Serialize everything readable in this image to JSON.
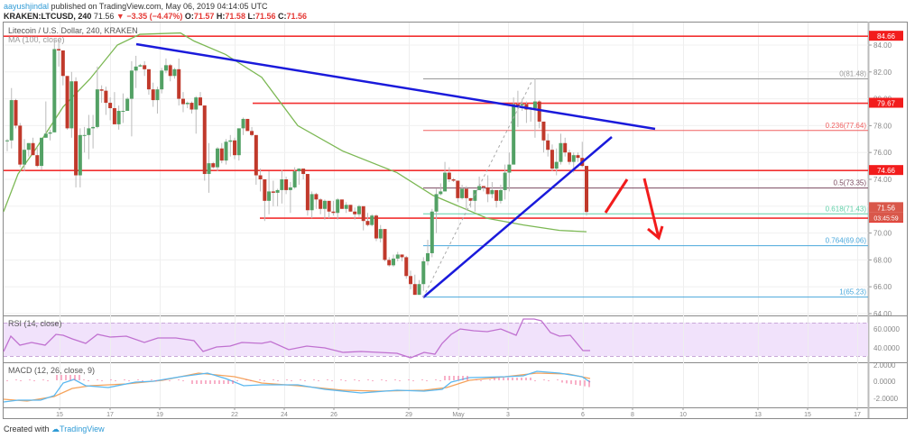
{
  "header": {
    "author": "aayushjindal",
    "published_text": " published on TradingView.com, May 06, 2019 04:14:05 UTC",
    "symbol": "KRAKEN:LTCUSD, 240",
    "last": "71.56",
    "change": "▼ −3.35 (−4.47%)",
    "o_label": "O:",
    "o": "71.57",
    "h_label": "H:",
    "h": "71.58",
    "l_label": "L:",
    "l": "71.56",
    "c_label": "C:",
    "c": "71.56"
  },
  "chart_title": "Litecoin / U.S. Dollar, 240, KRAKEN",
  "ma_label": "MA (100, close)",
  "rsi_label": "RSI (14, close)",
  "macd_label": "MACD (12, 26, close, 9)",
  "footer": {
    "created": "Created with",
    "brand": "TradingView"
  },
  "colors": {
    "up": "#53a165",
    "down": "#c0392b",
    "ma": "#7cb854",
    "trend": "#1a1adb",
    "hline": "#f23030",
    "rsi": "#c071d0",
    "macd": "#5ab8f0",
    "signal": "#f5a35c",
    "hist": "#f06292"
  },
  "chart_data": {
    "type": "candlestick",
    "title": "Litecoin / U.S. Dollar, 240, KRAKEN",
    "price_axis": {
      "ticks": [
        "84.00",
        "82.00",
        "80.00",
        "78.00",
        "76.00",
        "74.00",
        "72.00",
        "70.00",
        "68.00",
        "66.00",
        "64.00"
      ],
      "range": [
        64.0,
        85.5
      ]
    },
    "time_axis": {
      "ticks": [
        "15",
        "17",
        "19",
        "22",
        "24",
        "26",
        "29",
        "May",
        "3",
        "6",
        "8",
        "10",
        "13",
        "15",
        "17"
      ]
    },
    "horizontal_levels": [
      {
        "price": 84.66,
        "label": "84.66"
      },
      {
        "price": 79.67,
        "label": "79.67"
      },
      {
        "price": 74.66,
        "label": "74.66"
      },
      {
        "price": 71.11,
        "label": "71.11"
      }
    ],
    "price_tags": [
      {
        "label": "71.56",
        "countdown": "03:45:59"
      }
    ],
    "fibonacci": [
      {
        "level": "0",
        "price": 81.48,
        "text": "0(81.48)",
        "color": "#999999"
      },
      {
        "level": "0.236",
        "price": 77.64,
        "text": "0.236(77.64)",
        "color": "#f06060"
      },
      {
        "level": "0.5",
        "price": 73.35,
        "text": "0.5(73.35)",
        "color": "#7a4a60"
      },
      {
        "level": "0.618",
        "price": 71.43,
        "text": "0.618(71.43)",
        "color": "#5fd0a8"
      },
      {
        "level": "0.764",
        "price": 69.06,
        "text": "0.764(69.06)",
        "color": "#4aa8dc"
      },
      {
        "level": "1",
        "price": 65.23,
        "text": "1(65.23)",
        "color": "#4aa8dc"
      }
    ],
    "candles": [
      [
        76.9,
        77.0,
        76.1,
        76.9
      ],
      [
        76.9,
        80.8,
        76.3,
        79.9
      ],
      [
        79.9,
        80.0,
        77.8,
        78.0
      ],
      [
        78.0,
        78.2,
        74.9,
        75.1
      ],
      [
        75.1,
        77.0,
        74.6,
        76.2
      ],
      [
        76.2,
        76.7,
        75.7,
        76.7
      ],
      [
        76.7,
        77.1,
        75.9,
        75.8
      ],
      [
        75.8,
        76.4,
        74.9,
        75.0
      ],
      [
        75.0,
        77.0,
        74.7,
        77.1
      ],
      [
        77.1,
        79.8,
        77.1,
        77.4
      ],
      [
        77.4,
        77.7,
        76.9,
        77.5
      ],
      [
        77.5,
        84.4,
        77.5,
        83.7
      ],
      [
        83.7,
        84.3,
        82.4,
        83.6
      ],
      [
        83.6,
        83.5,
        81.0,
        81.7
      ],
      [
        81.7,
        81.4,
        77.7,
        77.8
      ],
      [
        77.8,
        82.0,
        77.1,
        81.3
      ],
      [
        81.3,
        81.6,
        73.4,
        74.3
      ],
      [
        74.3,
        77.8,
        73.4,
        77.3
      ],
      [
        77.3,
        77.9,
        76.0,
        77.3
      ],
      [
        77.3,
        78.8,
        75.5,
        77.8
      ],
      [
        77.8,
        78.8,
        76.3,
        77.9
      ],
      [
        77.9,
        82.4,
        77.8,
        80.7
      ],
      [
        80.7,
        81.0,
        79.7,
        80.6
      ],
      [
        80.6,
        80.9,
        78.8,
        79.7
      ],
      [
        79.7,
        80.1,
        78.4,
        79.3
      ],
      [
        79.3,
        80.5,
        78.6,
        78.1
      ],
      [
        78.1,
        79.5,
        77.7,
        79.1
      ],
      [
        79.1,
        80.4,
        78.2,
        79.1
      ],
      [
        79.1,
        80.1,
        79.3,
        80.0
      ],
      [
        80.0,
        82.8,
        77.2,
        82.1
      ],
      [
        82.1,
        83.2,
        80.8,
        82.4
      ],
      [
        82.4,
        82.6,
        82.4,
        82.5
      ],
      [
        82.5,
        82.8,
        81.7,
        82.2
      ],
      [
        82.2,
        82.2,
        80.3,
        80.7
      ],
      [
        80.7,
        81.2,
        79.4,
        79.9
      ],
      [
        79.9,
        80.9,
        78.9,
        80.7
      ],
      [
        80.7,
        82.3,
        80.4,
        82.1
      ],
      [
        82.1,
        83.0,
        81.9,
        82.5
      ],
      [
        82.5,
        82.6,
        81.3,
        81.7
      ],
      [
        81.7,
        82.3,
        81.5,
        82.2
      ],
      [
        82.2,
        83.0,
        79.5,
        80.0
      ],
      [
        80.0,
        80.5,
        79.0,
        79.6
      ],
      [
        79.6,
        79.8,
        79.3,
        79.7
      ],
      [
        79.7,
        79.8,
        78.9,
        79.2
      ],
      [
        79.2,
        80.2,
        77.4,
        80.1
      ],
      [
        80.1,
        80.5,
        79.6,
        79.5
      ],
      [
        79.5,
        79.0,
        73.9,
        74.4
      ],
      [
        74.4,
        76.7,
        73.0,
        75.2
      ],
      [
        75.2,
        75.3,
        74.8,
        74.9
      ],
      [
        74.9,
        76.4,
        74.6,
        76.3
      ],
      [
        76.3,
        76.7,
        75.2,
        75.4
      ],
      [
        75.4,
        77.0,
        75.1,
        76.8
      ],
      [
        76.8,
        77.3,
        75.7,
        76.9
      ],
      [
        76.9,
        77.1,
        75.5,
        75.8
      ],
      [
        75.8,
        77.7,
        75.4,
        77.8
      ],
      [
        77.8,
        78.6,
        77.3,
        78.5
      ],
      [
        78.5,
        78.5,
        77.7,
        77.6
      ],
      [
        77.6,
        77.9,
        77.2,
        77.3
      ],
      [
        77.3,
        76.8,
        73.6,
        74.3
      ],
      [
        74.3,
        74.8,
        73.1,
        74.0
      ],
      [
        74.0,
        72.9,
        70.9,
        72.4
      ],
      [
        72.4,
        74.6,
        71.4,
        73.1
      ],
      [
        73.1,
        73.9,
        72.0,
        73.0
      ],
      [
        73.0,
        73.3,
        72.0,
        73.2
      ],
      [
        73.2,
        74.7,
        72.2,
        74.0
      ],
      [
        74.0,
        74.2,
        72.9,
        73.2
      ],
      [
        73.2,
        73.8,
        71.5,
        73.4
      ],
      [
        73.4,
        74.9,
        73.3,
        74.6
      ],
      [
        74.6,
        74.8,
        73.6,
        74.8
      ],
      [
        74.8,
        74.8,
        74.0,
        74.4
      ],
      [
        74.4,
        74.2,
        71.3,
        71.7
      ],
      [
        71.7,
        73.1,
        71.1,
        72.9
      ],
      [
        72.9,
        73.0,
        71.8,
        72.5
      ],
      [
        72.5,
        72.6,
        71.4,
        71.8
      ],
      [
        71.8,
        72.5,
        71.0,
        72.4
      ],
      [
        72.4,
        72.3,
        71.1,
        71.6
      ],
      [
        71.6,
        72.4,
        71.3,
        71.5
      ],
      [
        71.5,
        72.6,
        71.0,
        72.5
      ],
      [
        72.5,
        72.3,
        71.8,
        71.8
      ],
      [
        71.8,
        72.3,
        71.5,
        72.1
      ],
      [
        72.1,
        72.1,
        71.6,
        71.6
      ],
      [
        71.6,
        71.9,
        71.0,
        71.4
      ],
      [
        71.4,
        72.1,
        71.2,
        72.0
      ],
      [
        72.0,
        71.5,
        70.2,
        70.9
      ],
      [
        70.9,
        71.5,
        70.5,
        70.6
      ],
      [
        70.6,
        71.4,
        70.5,
        71.3
      ],
      [
        71.3,
        71.4,
        69.4,
        69.6
      ],
      [
        69.6,
        70.6,
        69.3,
        70.3
      ],
      [
        70.3,
        70.3,
        67.9,
        68.0
      ],
      [
        68.0,
        68.2,
        67.5,
        67.6
      ],
      [
        67.6,
        68.4,
        67.5,
        68.1
      ],
      [
        68.1,
        68.6,
        67.9,
        68.4
      ],
      [
        68.4,
        68.4,
        67.9,
        68.2
      ],
      [
        68.2,
        68.3,
        66.6,
        66.8
      ],
      [
        66.8,
        67.2,
        65.8,
        66.2
      ],
      [
        66.2,
        66.9,
        65.4,
        65.4
      ],
      [
        65.4,
        66.5,
        65.4,
        66.2
      ],
      [
        66.2,
        68.2,
        65.7,
        67.9
      ],
      [
        67.9,
        69.5,
        67.6,
        68.5
      ],
      [
        68.5,
        71.8,
        68.2,
        71.6
      ],
      [
        71.6,
        73.3,
        70.0,
        72.9
      ],
      [
        72.9,
        73.7,
        72.8,
        73.1
      ],
      [
        73.1,
        75.3,
        73.1,
        74.5
      ],
      [
        74.5,
        74.9,
        73.8,
        74.0
      ],
      [
        74.0,
        74.1,
        73.8,
        73.9
      ],
      [
        73.9,
        73.9,
        72.3,
        72.6
      ],
      [
        72.6,
        73.6,
        72.5,
        73.3
      ],
      [
        73.3,
        73.5,
        71.7,
        72.6
      ],
      [
        72.6,
        72.6,
        71.9,
        72.4
      ],
      [
        72.4,
        73.0,
        71.6,
        73.2
      ],
      [
        73.2,
        74.2,
        73.2,
        73.5
      ],
      [
        73.5,
        73.5,
        73.1,
        73.4
      ],
      [
        73.4,
        74.3,
        72.3,
        72.9
      ],
      [
        72.9,
        73.8,
        72.6,
        73.2
      ],
      [
        73.2,
        73.0,
        71.9,
        72.4
      ],
      [
        72.4,
        73.6,
        72.2,
        73.2
      ],
      [
        73.2,
        75.1,
        72.5,
        74.5
      ],
      [
        74.5,
        76.0,
        73.1,
        75.1
      ],
      [
        75.1,
        80.1,
        75.1,
        79.6
      ],
      [
        79.6,
        80.6,
        77.9,
        79.5
      ],
      [
        79.5,
        80.0,
        79.1,
        79.6
      ],
      [
        79.6,
        79.8,
        78.2,
        79.2
      ],
      [
        79.2,
        79.4,
        78.3,
        79.3
      ],
      [
        79.3,
        81.5,
        77.1,
        79.8
      ],
      [
        79.8,
        79.9,
        77.8,
        78.3
      ],
      [
        78.3,
        77.9,
        76.0,
        76.9
      ],
      [
        76.9,
        77.4,
        75.7,
        76.2
      ],
      [
        76.2,
        76.6,
        74.6,
        74.8
      ],
      [
        74.8,
        76.3,
        74.3,
        75.3
      ],
      [
        75.3,
        77.4,
        75.1,
        76.7
      ],
      [
        76.7,
        77.1,
        75.7,
        76.0
      ],
      [
        76.0,
        76.2,
        75.1,
        75.3
      ],
      [
        75.3,
        76.0,
        74.5,
        75.8
      ],
      [
        75.8,
        76.0,
        75.3,
        75.6
      ],
      [
        75.6,
        76.8,
        74.9,
        75.0
      ],
      [
        75.0,
        75.0,
        71.3,
        71.57
      ]
    ],
    "ma100": [
      [
        4,
        71.6
      ],
      [
        20,
        74.4
      ],
      [
        40,
        76.3
      ],
      [
        70,
        79.4
      ],
      [
        100,
        81.5
      ],
      [
        130,
        84.0
      ],
      [
        155,
        84.8
      ],
      [
        200,
        84.9
      ],
      [
        215,
        84.3
      ],
      [
        250,
        83.3
      ],
      [
        290,
        81.6
      ],
      [
        330,
        78.0
      ],
      [
        380,
        76.1
      ],
      [
        440,
        74.5
      ],
      [
        480,
        72.8
      ],
      [
        540,
        71.1
      ],
      [
        580,
        70.6
      ],
      [
        620,
        70.2
      ],
      [
        650,
        70.1
      ]
    ],
    "rsi": {
      "label": "RSI (14, close)",
      "ticks": [
        "60.0000",
        "40.0000"
      ],
      "band": [
        30,
        70
      ]
    },
    "macd": {
      "label": "MACD (12, 26, close, 9)",
      "ticks": [
        "2.0000",
        "0.0000",
        "-2.0000"
      ]
    }
  }
}
